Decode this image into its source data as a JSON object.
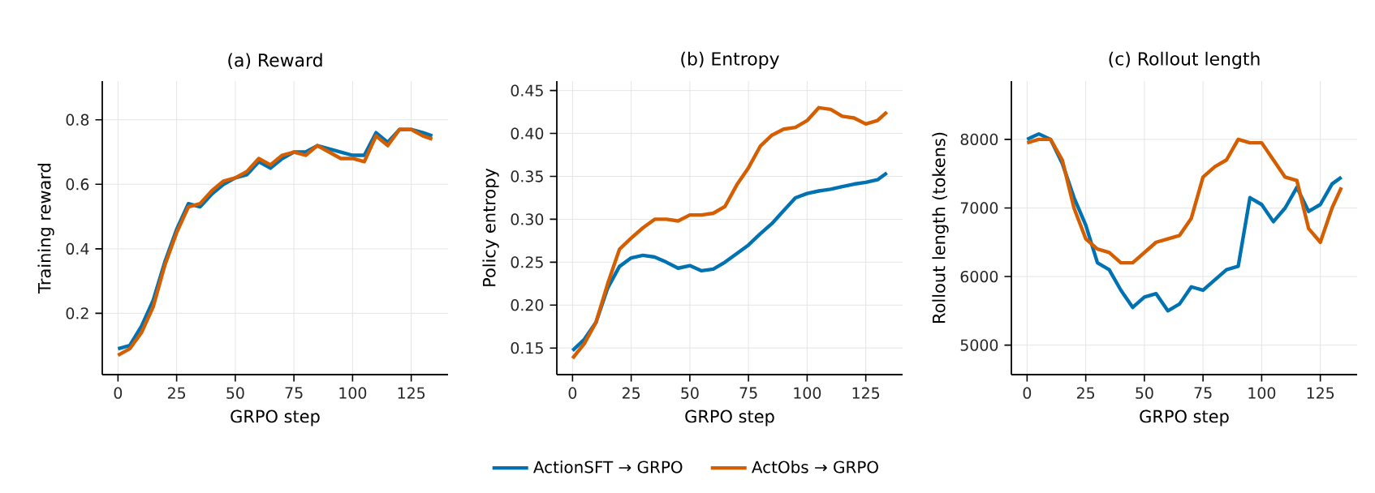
{
  "chart_data": [
    {
      "type": "line",
      "title": "(a) Reward",
      "xlabel": "GRPO step",
      "ylabel": "Training reward",
      "x": [
        0,
        5,
        10,
        15,
        20,
        25,
        30,
        35,
        40,
        45,
        50,
        55,
        60,
        65,
        70,
        75,
        80,
        85,
        90,
        95,
        100,
        105,
        110,
        115,
        120,
        125,
        130,
        134
      ],
      "series": [
        {
          "color": "#0072b2",
          "values": [
            0.09,
            0.1,
            0.16,
            0.24,
            0.36,
            0.46,
            0.54,
            0.53,
            0.57,
            0.6,
            0.62,
            0.63,
            0.67,
            0.65,
            0.68,
            0.7,
            0.7,
            0.72,
            0.71,
            0.7,
            0.69,
            0.69,
            0.76,
            0.73,
            0.77,
            0.77,
            0.76,
            0.75
          ]
        },
        {
          "color": "#d55e00",
          "values": [
            0.07,
            0.09,
            0.14,
            0.22,
            0.35,
            0.45,
            0.53,
            0.54,
            0.58,
            0.61,
            0.62,
            0.64,
            0.68,
            0.66,
            0.69,
            0.7,
            0.69,
            0.72,
            0.7,
            0.68,
            0.68,
            0.67,
            0.75,
            0.72,
            0.77,
            0.77,
            0.75,
            0.74
          ]
        }
      ],
      "xlim": [
        -6.7,
        140.7
      ],
      "ylim": [
        0.01,
        0.92
      ],
      "xticks": [
        0,
        25,
        50,
        75,
        100,
        125
      ],
      "yticks": [
        0.2,
        0.4,
        0.6,
        0.8
      ],
      "grid": true
    },
    {
      "type": "line",
      "title": "(b) Entropy",
      "xlabel": "GRPO step",
      "ylabel": "Policy entropy",
      "x": [
        0,
        5,
        10,
        15,
        20,
        25,
        30,
        35,
        40,
        45,
        50,
        55,
        60,
        65,
        70,
        75,
        80,
        85,
        90,
        95,
        100,
        105,
        110,
        115,
        120,
        125,
        130,
        134
      ],
      "series": [
        {
          "name": "ActionSFT → GRPO",
          "color": "#0072b2",
          "values": [
            0.147,
            0.16,
            0.18,
            0.22,
            0.245,
            0.255,
            0.258,
            0.256,
            0.25,
            0.243,
            0.246,
            0.24,
            0.242,
            0.25,
            0.26,
            0.27,
            0.283,
            0.295,
            0.31,
            0.325,
            0.33,
            0.333,
            0.335,
            0.338,
            0.341,
            0.343,
            0.346,
            0.354
          ]
        },
        {
          "name": "ActObs → GRPO",
          "color": "#d55e00",
          "values": [
            0.138,
            0.155,
            0.18,
            0.225,
            0.265,
            0.278,
            0.29,
            0.3,
            0.3,
            0.298,
            0.305,
            0.305,
            0.307,
            0.315,
            0.34,
            0.36,
            0.385,
            0.398,
            0.405,
            0.407,
            0.415,
            0.43,
            0.428,
            0.42,
            0.418,
            0.411,
            0.415,
            0.425
          ]
        }
      ],
      "xlim": [
        -6.7,
        140.7
      ],
      "ylim": [
        0.119,
        0.461
      ],
      "xticks": [
        0,
        25,
        50,
        75,
        100,
        125
      ],
      "yticks": [
        0.15,
        {
          "value": 0.2,
          "label": "0.20"
        },
        0.25,
        {
          "value": 0.3,
          "label": "0.30"
        },
        0.35,
        {
          "value": 0.4,
          "label": "0.40"
        },
        0.45
      ],
      "grid": true,
      "legend": "bottom"
    },
    {
      "type": "line",
      "title": "(c) Rollout length",
      "xlabel": "GRPO step",
      "ylabel": "Rollout length (tokens)",
      "x": [
        0,
        5,
        10,
        15,
        20,
        25,
        30,
        35,
        40,
        45,
        50,
        55,
        60,
        65,
        70,
        75,
        80,
        85,
        90,
        95,
        100,
        105,
        110,
        115,
        120,
        125,
        130,
        134
      ],
      "series": [
        {
          "color": "#0072b2",
          "values": [
            8000,
            8080,
            8000,
            7650,
            7150,
            6750,
            6200,
            6100,
            5800,
            5550,
            5700,
            5750,
            5500,
            5600,
            5850,
            5800,
            5950,
            6100,
            6150,
            7150,
            7050,
            6800,
            7000,
            7300,
            6950,
            7050,
            7350,
            7450
          ]
        },
        {
          "color": "#d55e00",
          "values": [
            7950,
            8000,
            8000,
            7700,
            7000,
            6550,
            6400,
            6350,
            6200,
            6200,
            6350,
            6500,
            6550,
            6600,
            6850,
            7450,
            7600,
            7700,
            8000,
            7950,
            7950,
            7700,
            7450,
            7400,
            6700,
            6500,
            7000,
            7300
          ]
        }
      ],
      "xlim": [
        -6.7,
        140.7
      ],
      "ylim": [
        4570,
        8850
      ],
      "xticks": [
        0,
        25,
        50,
        75,
        100,
        125
      ],
      "yticks": [
        5000,
        6000,
        7000,
        8000
      ],
      "grid": true
    }
  ]
}
